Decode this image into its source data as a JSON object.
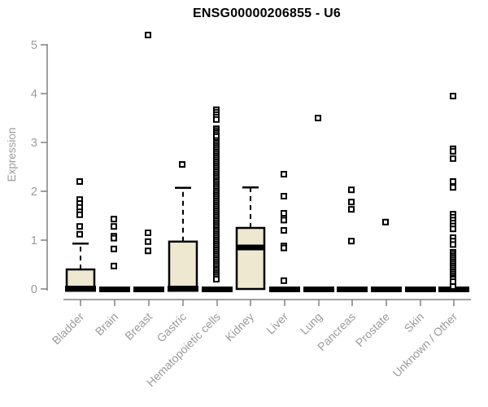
{
  "title": "ENSG00000206855 - U6",
  "chart_data": {
    "type": "boxplot",
    "title": "ENSG00000206855 - U6",
    "xlabel": "",
    "ylabel": "Expression",
    "ylim": [
      0,
      5
    ],
    "yticks": [
      0,
      1,
      2,
      3,
      4,
      5
    ],
    "grid": false,
    "legend": "none",
    "box_fill": "#EDE8CF",
    "box_stroke": "#000000",
    "axis_color": "#808080",
    "label_color": "#9a9a9a",
    "categories": [
      "Bladder",
      "Brain",
      "Breast",
      "Gastric",
      "Hematopoietic cells",
      "Kidney",
      "Liver",
      "Lung",
      "Pancreas",
      "Prostate",
      "Skin",
      "Unknown / Other"
    ],
    "boxes": [
      {
        "category": "Bladder",
        "q1": 0,
        "median": 0,
        "q3": 0.4,
        "whisker_low": 0,
        "whisker_high": 0.93,
        "outliers": [
          2.2,
          1.83,
          1.75,
          1.67,
          1.58,
          1.52,
          1.28,
          1.12
        ]
      },
      {
        "category": "Brain",
        "q1": 0,
        "median": 0,
        "q3": 0,
        "whisker_low": 0,
        "whisker_high": 0,
        "outliers": [
          1.43,
          1.28,
          1.08,
          1.04,
          0.82,
          0.47
        ]
      },
      {
        "category": "Breast",
        "q1": 0,
        "median": 0,
        "q3": 0,
        "whisker_low": 0,
        "whisker_high": 0,
        "outliers": [
          5.2,
          1.15,
          0.97,
          0.78
        ]
      },
      {
        "category": "Gastric",
        "q1": 0,
        "median": 0,
        "q3": 0.97,
        "whisker_low": 0,
        "whisker_high": 2.07,
        "outliers": [
          2.55
        ]
      },
      {
        "category": "Hematopoietic cells",
        "q1": 0,
        "median": 0,
        "q3": 0,
        "whisker_low": 0,
        "whisker_high": 0,
        "outliers": [
          3.67,
          3.62,
          3.57,
          3.52,
          3.47,
          3.28,
          3.24,
          3.2,
          3.16,
          3.12,
          3.04,
          3.0,
          2.96,
          2.92,
          2.88,
          2.84,
          2.8,
          2.76,
          2.72,
          2.68,
          2.64,
          2.6,
          2.56,
          2.52,
          2.48,
          2.44,
          2.4,
          2.36,
          2.32,
          2.28,
          2.24,
          2.2,
          2.16,
          2.12,
          2.08,
          2.04,
          2.0,
          1.96,
          1.92,
          1.88,
          1.84,
          1.8,
          1.76,
          1.72,
          1.68,
          1.64,
          1.6,
          1.56,
          1.52,
          1.48,
          1.44,
          1.4,
          1.36,
          1.32,
          1.28,
          1.24,
          1.2,
          1.16,
          1.12,
          1.08,
          1.04,
          1.0,
          0.96,
          0.92,
          0.88,
          0.84,
          0.8,
          0.76,
          0.72,
          0.68,
          0.64,
          0.6,
          0.56,
          0.52,
          0.48,
          0.44,
          0.4,
          0.36,
          0.32,
          0.28,
          0.24,
          0.2
        ]
      },
      {
        "category": "Kidney",
        "q1": 0,
        "median": 0.85,
        "q3": 1.25,
        "whisker_low": 0,
        "whisker_high": 2.08,
        "outliers": []
      },
      {
        "category": "Liver",
        "q1": 0,
        "median": 0,
        "q3": 0,
        "whisker_low": 0,
        "whisker_high": 0,
        "outliers": [
          2.35,
          1.9,
          1.55,
          1.45,
          1.41,
          1.2,
          0.88,
          0.84,
          0.17
        ]
      },
      {
        "category": "Lung",
        "q1": 0,
        "median": 0,
        "q3": 0,
        "whisker_low": 0,
        "whisker_high": 0,
        "outliers": [
          3.5
        ]
      },
      {
        "category": "Pancreas",
        "q1": 0,
        "median": 0,
        "q3": 0,
        "whisker_low": 0,
        "whisker_high": 0,
        "outliers": [
          2.03,
          1.78,
          1.63,
          0.98
        ]
      },
      {
        "category": "Prostate",
        "q1": 0,
        "median": 0,
        "q3": 0,
        "whisker_low": 0,
        "whisker_high": 0,
        "outliers": [
          1.37
        ]
      },
      {
        "category": "Skin",
        "q1": 0,
        "median": 0,
        "q3": 0,
        "whisker_low": 0,
        "whisker_high": 0,
        "outliers": []
      },
      {
        "category": "Unknown / Other",
        "q1": 0,
        "median": 0,
        "q3": 0,
        "whisker_low": 0,
        "whisker_high": 0,
        "outliers": [
          3.95,
          2.87,
          2.82,
          2.67,
          2.2,
          2.08,
          1.53,
          1.47,
          1.41,
          1.35,
          1.29,
          1.23,
          1.05,
          0.98,
          0.91,
          0.75,
          0.71,
          0.67,
          0.63,
          0.59,
          0.55,
          0.51,
          0.47,
          0.43,
          0.39,
          0.35,
          0.31,
          0.27,
          0.23,
          0.2,
          0.15,
          0.05
        ]
      }
    ]
  }
}
